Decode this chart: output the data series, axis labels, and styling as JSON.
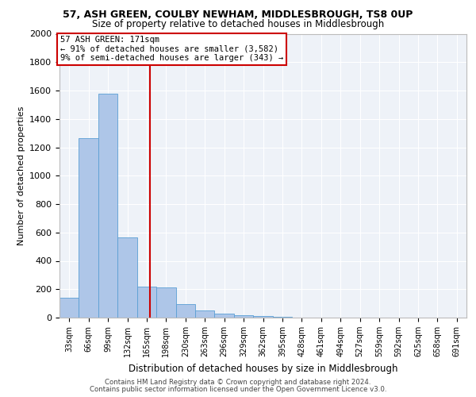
{
  "title_line1": "57, ASH GREEN, COULBY NEWHAM, MIDDLESBROUGH, TS8 0UP",
  "title_line2": "Size of property relative to detached houses in Middlesbrough",
  "xlabel": "Distribution of detached houses by size in Middlesbrough",
  "ylabel": "Number of detached properties",
  "bar_color": "#aec6e8",
  "bar_edge_color": "#5a9fd4",
  "annotation_box_color": "#cc0000",
  "annotation_text_line1": "57 ASH GREEN: 171sqm",
  "annotation_text_line2": "← 91% of detached houses are smaller (3,582)",
  "annotation_text_line3": "9% of semi-detached houses are larger (343) →",
  "vline_x": 171,
  "vline_color": "#cc0000",
  "categories": [
    "33sqm",
    "66sqm",
    "99sqm",
    "132sqm",
    "165sqm",
    "198sqm",
    "230sqm",
    "263sqm",
    "296sqm",
    "329sqm",
    "362sqm",
    "395sqm",
    "428sqm",
    "461sqm",
    "494sqm",
    "527sqm",
    "559sqm",
    "592sqm",
    "625sqm",
    "658sqm",
    "691sqm"
  ],
  "bin_edges": [
    16.5,
    49.5,
    82.5,
    115.5,
    148.5,
    181.5,
    214.5,
    247.5,
    280.5,
    313.5,
    346.5,
    379.5,
    412.5,
    445.5,
    478.5,
    511.5,
    544.5,
    577.5,
    610.5,
    643.5,
    676.5,
    709.5
  ],
  "values": [
    140,
    1265,
    1575,
    565,
    220,
    215,
    95,
    50,
    28,
    15,
    10,
    5,
    0,
    0,
    0,
    0,
    0,
    0,
    0,
    0,
    0
  ],
  "ylim": [
    0,
    2000
  ],
  "yticks": [
    0,
    200,
    400,
    600,
    800,
    1000,
    1200,
    1400,
    1600,
    1800,
    2000
  ],
  "footer_line1": "Contains HM Land Registry data © Crown copyright and database right 2024.",
  "footer_line2": "Contains public sector information licensed under the Open Government Licence v3.0.",
  "plot_bg_color": "#eef2f8"
}
